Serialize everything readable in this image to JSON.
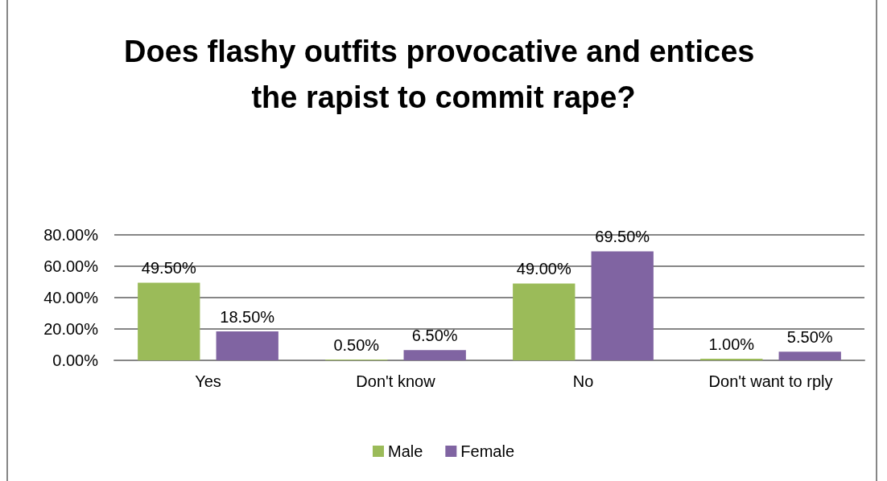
{
  "chart_data": {
    "type": "bar",
    "title": "Does flashy outfits provocative and entices the rapist to commit rape?",
    "categories": [
      "Yes",
      "Don't know",
      "No",
      "Don't want to rply"
    ],
    "series": [
      {
        "name": "Male",
        "color": "#9bbb59",
        "values": [
          49.5,
          0.5,
          49.0,
          1.0
        ],
        "value_labels": [
          "49.50%",
          "0.50%",
          "49.00%",
          "1.00%"
        ]
      },
      {
        "name": "Female",
        "color": "#8064a2",
        "values": [
          18.5,
          6.5,
          69.5,
          5.5
        ],
        "value_labels": [
          "18.50%",
          "6.50%",
          "69.50%",
          "5.50%"
        ]
      }
    ],
    "ylim": [
      0,
      80
    ],
    "yticks": [
      {
        "value": 0,
        "label": "0.00%"
      },
      {
        "value": 20,
        "label": "20.00%"
      },
      {
        "value": 40,
        "label": "40.00%"
      },
      {
        "value": 60,
        "label": "60.00%"
      },
      {
        "value": 80,
        "label": "80.00%"
      }
    ],
    "grid": "y",
    "legend": "bottom"
  }
}
